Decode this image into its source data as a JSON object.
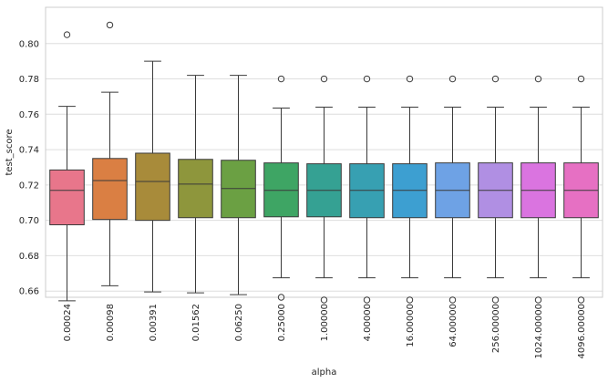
{
  "chart_data": {
    "type": "box",
    "xlabel": "alpha",
    "ylabel": "test_score",
    "ylim": [
      0.6565,
      0.8205
    ],
    "yticks": [
      0.66,
      0.68,
      0.7,
      0.72,
      0.74,
      0.76,
      0.78,
      0.8
    ],
    "ytick_labels": [
      "0.66",
      "0.68",
      "0.70",
      "0.72",
      "0.74",
      "0.76",
      "0.78",
      "0.80"
    ],
    "grid": "horizontal",
    "categories": [
      "0.00024",
      "0.00098",
      "0.00391",
      "0.01562",
      "0.06250",
      "0.25000",
      "1.00000",
      "4.00000",
      "16.00000",
      "64.00000",
      "256.00000",
      "1024.00000",
      "4096.00000"
    ],
    "colors": [
      "#e8768b",
      "#da7f43",
      "#a88b3a",
      "#8e963c",
      "#6ba043",
      "#3ea564",
      "#35a193",
      "#37a0b2",
      "#3d9fd1",
      "#6ea2e5",
      "#b08fe3",
      "#da74e0",
      "#e670c3"
    ],
    "boxes": [
      {
        "whisker_low": 0.6545,
        "q1": 0.6975,
        "median": 0.717,
        "q3": 0.7285,
        "whisker_high": 0.7645,
        "outliers": [
          0.805
        ]
      },
      {
        "whisker_low": 0.663,
        "q1": 0.7005,
        "median": 0.7225,
        "q3": 0.735,
        "whisker_high": 0.7725,
        "outliers": [
          0.8105
        ]
      },
      {
        "whisker_low": 0.6595,
        "q1": 0.7,
        "median": 0.722,
        "q3": 0.738,
        "whisker_high": 0.79,
        "outliers": []
      },
      {
        "whisker_low": 0.659,
        "q1": 0.7015,
        "median": 0.7205,
        "q3": 0.7345,
        "whisker_high": 0.782,
        "outliers": []
      },
      {
        "whisker_low": 0.658,
        "q1": 0.7015,
        "median": 0.718,
        "q3": 0.734,
        "whisker_high": 0.782,
        "outliers": []
      },
      {
        "whisker_low": 0.6675,
        "q1": 0.702,
        "median": 0.717,
        "q3": 0.7325,
        "whisker_high": 0.7635,
        "outliers": [
          0.6565,
          0.78
        ]
      },
      {
        "whisker_low": 0.6675,
        "q1": 0.702,
        "median": 0.717,
        "q3": 0.732,
        "whisker_high": 0.764,
        "outliers": [
          0.655,
          0.78
        ]
      },
      {
        "whisker_low": 0.6675,
        "q1": 0.7015,
        "median": 0.717,
        "q3": 0.732,
        "whisker_high": 0.764,
        "outliers": [
          0.655,
          0.78
        ]
      },
      {
        "whisker_low": 0.6675,
        "q1": 0.7015,
        "median": 0.717,
        "q3": 0.732,
        "whisker_high": 0.764,
        "outliers": [
          0.655,
          0.78
        ]
      },
      {
        "whisker_low": 0.6675,
        "q1": 0.7015,
        "median": 0.717,
        "q3": 0.7325,
        "whisker_high": 0.764,
        "outliers": [
          0.655,
          0.78
        ]
      },
      {
        "whisker_low": 0.6675,
        "q1": 0.7015,
        "median": 0.717,
        "q3": 0.7325,
        "whisker_high": 0.764,
        "outliers": [
          0.655,
          0.78
        ]
      },
      {
        "whisker_low": 0.6675,
        "q1": 0.7015,
        "median": 0.717,
        "q3": 0.7325,
        "whisker_high": 0.764,
        "outliers": [
          0.655,
          0.78
        ]
      },
      {
        "whisker_low": 0.6675,
        "q1": 0.7015,
        "median": 0.717,
        "q3": 0.7325,
        "whisker_high": 0.764,
        "outliers": [
          0.655,
          0.78
        ]
      }
    ]
  }
}
